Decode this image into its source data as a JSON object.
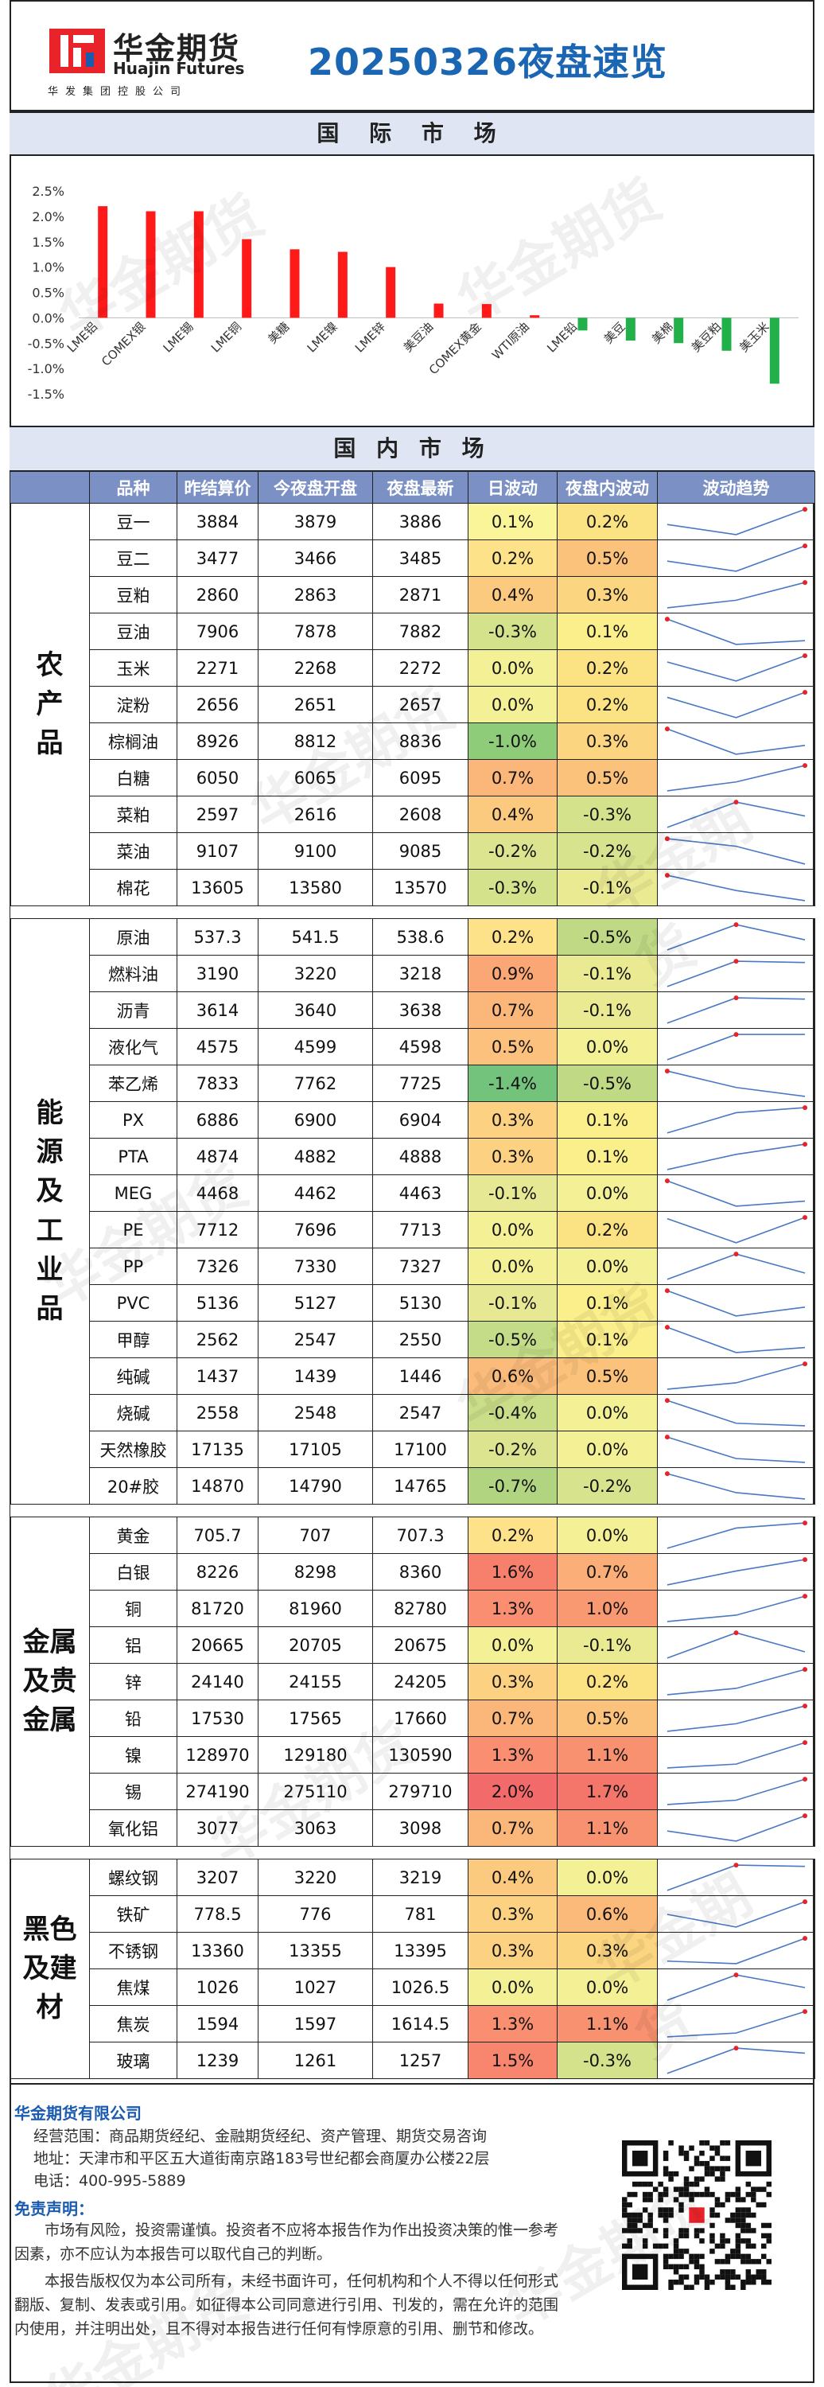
{
  "header": {
    "logo_cn": "华金期货",
    "logo_en": "Huajin Futures",
    "logo_sub": "华发集团控股公司",
    "title": "20250326夜盘速览"
  },
  "sections": {
    "international": "国 际 市 场",
    "domestic": "国 内 市 场"
  },
  "chart_data": {
    "type": "bar",
    "categories": [
      "LME铝",
      "COMEX银",
      "LME锡",
      "LME铜",
      "美糖",
      "LME镍",
      "LME锌",
      "美豆油",
      "COMEX黄金",
      "WTI原油",
      "LME铅",
      "美豆",
      "美棉",
      "美豆粕",
      "美玉米"
    ],
    "values": [
      2.2,
      2.1,
      2.1,
      1.55,
      1.35,
      1.3,
      1.0,
      0.28,
      0.27,
      0.05,
      -0.25,
      -0.45,
      -0.5,
      -0.65,
      -1.3
    ],
    "ylim": [
      -1.5,
      2.5
    ],
    "yticks": [
      "2.5%",
      "2.0%",
      "1.5%",
      "1.0%",
      "0.5%",
      "0.0%",
      "-0.5%",
      "-1.0%",
      "-1.5%"
    ],
    "positive_color": "#ff1a1a",
    "negative_color": "#22b04a",
    "title": "",
    "xlabel": "",
    "ylabel": ""
  },
  "table": {
    "headers": [
      "品种",
      "昨结算价",
      "今夜盘开盘",
      "夜盘最新",
      "日波动",
      "夜盘内波动",
      "波动趋势"
    ],
    "groups": [
      {
        "name": "农产品",
        "lines": [
          "农",
          "产",
          "品"
        ],
        "rows": [
          {
            "name": "豆一",
            "prev": "3884",
            "open": "3879",
            "last": "3886",
            "day": "0.1%",
            "night": "0.2%",
            "dayc": "#fbf59a",
            "nightc": "#fbe283",
            "trend": [
              0.4,
              0.0,
              1.0
            ]
          },
          {
            "name": "豆二",
            "prev": "3477",
            "open": "3466",
            "last": "3485",
            "day": "0.2%",
            "night": "0.5%",
            "dayc": "#fde28a",
            "nightc": "#fbc27b",
            "trend": [
              0.4,
              0.0,
              1.0
            ]
          },
          {
            "name": "豆粕",
            "prev": "2860",
            "open": "2863",
            "last": "2871",
            "day": "0.4%",
            "night": "0.3%",
            "dayc": "#fcca7e",
            "nightc": "#fbd580",
            "trend": [
              0.0,
              0.3,
              1.0
            ]
          },
          {
            "name": "豆油",
            "prev": "7906",
            "open": "7878",
            "last": "7882",
            "day": "-0.3%",
            "night": "0.1%",
            "dayc": "#d3e28b",
            "nightc": "#fbef8c",
            "trend": [
              1.0,
              0.0,
              0.15
            ]
          },
          {
            "name": "玉米",
            "prev": "2271",
            "open": "2268",
            "last": "2272",
            "day": "0.0%",
            "night": "0.2%",
            "dayc": "#f4f096",
            "nightc": "#fbe283",
            "trend": [
              0.75,
              0.0,
              1.0
            ]
          },
          {
            "name": "淀粉",
            "prev": "2656",
            "open": "2651",
            "last": "2657",
            "day": "0.0%",
            "night": "0.2%",
            "dayc": "#f4f096",
            "nightc": "#fbe283",
            "trend": [
              0.8,
              0.0,
              1.0
            ]
          },
          {
            "name": "棕榈油",
            "prev": "8926",
            "open": "8812",
            "last": "8836",
            "day": "-1.0%",
            "night": "0.3%",
            "dayc": "#8fcc79",
            "nightc": "#fbd580",
            "trend": [
              1.0,
              0.0,
              0.35
            ]
          },
          {
            "name": "白糖",
            "prev": "6050",
            "open": "6065",
            "last": "6095",
            "day": "0.7%",
            "night": "0.5%",
            "dayc": "#fbb679",
            "nightc": "#fbc27b",
            "trend": [
              0.0,
              0.35,
              1.0
            ]
          },
          {
            "name": "菜粕",
            "prev": "2597",
            "open": "2616",
            "last": "2608",
            "day": "0.4%",
            "night": "-0.3%",
            "dayc": "#fcca7e",
            "nightc": "#d3e28b",
            "trend": [
              0.0,
              1.0,
              0.45
            ]
          },
          {
            "name": "菜油",
            "prev": "9107",
            "open": "9100",
            "last": "9085",
            "day": "-0.2%",
            "night": "-0.2%",
            "dayc": "#dde48f",
            "nightc": "#d8e38d",
            "trend": [
              1.0,
              0.7,
              0.0
            ]
          },
          {
            "name": "棉花",
            "prev": "13605",
            "open": "13580",
            "last": "13570",
            "day": "-0.3%",
            "night": "-0.1%",
            "dayc": "#d3e28b",
            "nightc": "#eaea93",
            "trend": [
              1.0,
              0.4,
              0.0
            ]
          }
        ]
      },
      {
        "name": "能源及工业品",
        "lines": [
          "能",
          "源",
          "及",
          "工",
          "业",
          "品"
        ],
        "rows": [
          {
            "name": "原油",
            "prev": "537.3",
            "open": "541.5",
            "last": "538.6",
            "day": "0.2%",
            "night": "-0.5%",
            "dayc": "#fde28a",
            "nightc": "#bfd985",
            "trend": [
              0.0,
              1.0,
              0.4
            ]
          },
          {
            "name": "燃料油",
            "prev": "3190",
            "open": "3220",
            "last": "3218",
            "day": "0.9%",
            "night": "-0.1%",
            "dayc": "#fba775",
            "nightc": "#eaea93",
            "trend": [
              0.0,
              1.0,
              0.95
            ]
          },
          {
            "name": "沥青",
            "prev": "3614",
            "open": "3640",
            "last": "3638",
            "day": "0.7%",
            "night": "-0.1%",
            "dayc": "#fbb679",
            "nightc": "#eaea93",
            "trend": [
              0.0,
              1.0,
              0.95
            ]
          },
          {
            "name": "液化气",
            "prev": "4575",
            "open": "4599",
            "last": "4598",
            "day": "0.5%",
            "night": "0.0%",
            "dayc": "#fcc17c",
            "nightc": "#f4f096",
            "trend": [
              0.0,
              1.0,
              1.0
            ]
          },
          {
            "name": "苯乙烯",
            "prev": "7833",
            "open": "7762",
            "last": "7725",
            "day": "-1.4%",
            "night": "-0.5%",
            "dayc": "#74c37c",
            "nightc": "#bfd985",
            "trend": [
              1.0,
              0.35,
              0.0
            ]
          },
          {
            "name": "PX",
            "prev": "6886",
            "open": "6900",
            "last": "6904",
            "day": "0.3%",
            "night": "0.1%",
            "dayc": "#fcd282",
            "nightc": "#fbef8c",
            "trend": [
              0.0,
              0.8,
              1.0
            ]
          },
          {
            "name": "PTA",
            "prev": "4874",
            "open": "4882",
            "last": "4888",
            "day": "0.3%",
            "night": "0.1%",
            "dayc": "#fcd282",
            "nightc": "#fbef8c",
            "trend": [
              0.0,
              0.6,
              1.0
            ]
          },
          {
            "name": "MEG",
            "prev": "4468",
            "open": "4462",
            "last": "4463",
            "day": "-0.1%",
            "night": "0.0%",
            "dayc": "#e7e893",
            "nightc": "#f4f096",
            "trend": [
              1.0,
              0.0,
              0.2
            ]
          },
          {
            "name": "PE",
            "prev": "7712",
            "open": "7696",
            "last": "7713",
            "day": "0.0%",
            "night": "0.2%",
            "dayc": "#f4f096",
            "nightc": "#fbe283",
            "trend": [
              0.95,
              0.0,
              1.0
            ]
          },
          {
            "name": "PP",
            "prev": "7326",
            "open": "7330",
            "last": "7327",
            "day": "0.0%",
            "night": "0.0%",
            "dayc": "#f4f096",
            "nightc": "#f4f096",
            "trend": [
              0.0,
              1.0,
              0.25
            ]
          },
          {
            "name": "PVC",
            "prev": "5136",
            "open": "5127",
            "last": "5130",
            "day": "-0.1%",
            "night": "0.1%",
            "dayc": "#e7e893",
            "nightc": "#fbef8c",
            "trend": [
              1.0,
              0.0,
              0.35
            ]
          },
          {
            "name": "甲醇",
            "prev": "2562",
            "open": "2547",
            "last": "2550",
            "day": "-0.5%",
            "night": "0.1%",
            "dayc": "#c4db87",
            "nightc": "#fbef8c",
            "trend": [
              1.0,
              0.0,
              0.2
            ]
          },
          {
            "name": "纯碱",
            "prev": "1437",
            "open": "1439",
            "last": "1446",
            "day": "0.6%",
            "night": "0.5%",
            "dayc": "#fbbb7a",
            "nightc": "#fbc27b",
            "trend": [
              0.0,
              0.25,
              1.0
            ]
          },
          {
            "name": "烧碱",
            "prev": "2558",
            "open": "2548",
            "last": "2547",
            "day": "-0.4%",
            "night": "0.0%",
            "dayc": "#cadd89",
            "nightc": "#f4f096",
            "trend": [
              1.0,
              0.1,
              0.0
            ]
          },
          {
            "name": "天然橡胶",
            "prev": "17135",
            "open": "17105",
            "last": "17100",
            "day": "-0.2%",
            "night": "0.0%",
            "dayc": "#dde48f",
            "nightc": "#f4f096",
            "trend": [
              1.0,
              0.15,
              0.0
            ]
          },
          {
            "name": "20#胶",
            "prev": "14870",
            "open": "14790",
            "last": "14765",
            "day": "-0.7%",
            "night": "-0.2%",
            "dayc": "#b1d481",
            "nightc": "#d8e38d",
            "trend": [
              1.0,
              0.25,
              0.0
            ]
          }
        ]
      },
      {
        "name": "金属及贵金属",
        "lines": [
          "金属",
          "及贵",
          "金属"
        ],
        "rows": [
          {
            "name": "黄金",
            "prev": "705.7",
            "open": "707",
            "last": "707.3",
            "day": "0.2%",
            "night": "0.0%",
            "dayc": "#fde28a",
            "nightc": "#f4f096",
            "trend": [
              0.0,
              0.8,
              1.0
            ]
          },
          {
            "name": "白银",
            "prev": "8226",
            "open": "8298",
            "last": "8360",
            "day": "1.6%",
            "night": "0.7%",
            "dayc": "#f7806c",
            "nightc": "#fbae77",
            "trend": [
              0.0,
              0.55,
              1.0
            ]
          },
          {
            "name": "铜",
            "prev": "81720",
            "open": "81960",
            "last": "82780",
            "day": "1.3%",
            "night": "1.0%",
            "dayc": "#f98f70",
            "nightc": "#f99972",
            "trend": [
              0.0,
              0.25,
              1.0
            ]
          },
          {
            "name": "铝",
            "prev": "20665",
            "open": "20705",
            "last": "20675",
            "day": "0.0%",
            "night": "-0.1%",
            "dayc": "#f4f096",
            "nightc": "#eaea93",
            "trend": [
              0.0,
              1.0,
              0.25
            ]
          },
          {
            "name": "锌",
            "prev": "24140",
            "open": "24155",
            "last": "24205",
            "day": "0.3%",
            "night": "0.2%",
            "dayc": "#fcd282",
            "nightc": "#fbe283",
            "trend": [
              0.0,
              0.25,
              1.0
            ]
          },
          {
            "name": "铅",
            "prev": "17530",
            "open": "17565",
            "last": "17660",
            "day": "0.7%",
            "night": "0.5%",
            "dayc": "#fbb679",
            "nightc": "#fbc27b",
            "trend": [
              0.0,
              0.3,
              1.0
            ]
          },
          {
            "name": "镍",
            "prev": "128970",
            "open": "129180",
            "last": "130590",
            "day": "1.3%",
            "night": "1.1%",
            "dayc": "#f98f70",
            "nightc": "#f8916f",
            "trend": [
              0.0,
              0.15,
              1.0
            ]
          },
          {
            "name": "锡",
            "prev": "274190",
            "open": "275110",
            "last": "279710",
            "day": "2.0%",
            "night": "1.7%",
            "dayc": "#f26a69",
            "nightc": "#f4756a",
            "trend": [
              0.0,
              0.17,
              1.0
            ]
          },
          {
            "name": "氧化铝",
            "prev": "3077",
            "open": "3063",
            "last": "3098",
            "day": "0.7%",
            "night": "1.1%",
            "dayc": "#fbb679",
            "nightc": "#f8916f",
            "trend": [
              0.4,
              0.0,
              1.0
            ]
          }
        ]
      },
      {
        "name": "黑色及建材",
        "lines": [
          "黑色",
          "及建",
          "材"
        ],
        "rows": [
          {
            "name": "螺纹钢",
            "prev": "3207",
            "open": "3220",
            "last": "3219",
            "day": "0.4%",
            "night": "0.0%",
            "dayc": "#fcca7e",
            "nightc": "#f4f096",
            "trend": [
              0.0,
              1.0,
              0.95
            ]
          },
          {
            "name": "铁矿",
            "prev": "778.5",
            "open": "776",
            "last": "781",
            "day": "0.3%",
            "night": "0.6%",
            "dayc": "#fcd282",
            "nightc": "#fbba7a",
            "trend": [
              0.5,
              0.0,
              1.0
            ]
          },
          {
            "name": "不锈钢",
            "prev": "13360",
            "open": "13355",
            "last": "13395",
            "day": "0.3%",
            "night": "0.3%",
            "dayc": "#fcd282",
            "nightc": "#fbd580",
            "trend": [
              0.1,
              0.0,
              1.0
            ]
          },
          {
            "name": "焦煤",
            "prev": "1026",
            "open": "1027",
            "last": "1026.5",
            "day": "0.0%",
            "night": "0.0%",
            "dayc": "#f4f096",
            "nightc": "#f4f096",
            "trend": [
              0.0,
              1.0,
              0.5
            ]
          },
          {
            "name": "焦炭",
            "prev": "1594",
            "open": "1597",
            "last": "1614.5",
            "day": "1.3%",
            "night": "1.1%",
            "dayc": "#f98f70",
            "nightc": "#f8916f",
            "trend": [
              0.0,
              0.15,
              1.0
            ]
          },
          {
            "name": "玻璃",
            "prev": "1239",
            "open": "1261",
            "last": "1257",
            "day": "1.5%",
            "night": "-0.3%",
            "dayc": "#f8866e",
            "nightc": "#d3e28b",
            "trend": [
              0.0,
              1.0,
              0.8
            ]
          }
        ]
      }
    ]
  },
  "footer": {
    "company": "华金期货有限公司",
    "scope": "经营范围：商品期货经纪、金融期货经纪、资产管理、期货交易咨询",
    "address": "地址：天津市和平区五大道街南京路183号世纪都会商厦办公楼22层",
    "phone": "电话：400-995-5889",
    "disclaimer_title": "免责声明：",
    "para1": "市场有风险，投资需谨慎。投资者不应将本报告作为作出投资决策的惟一参考因素，亦不应认为本报告可以取代自己的判断。",
    "para2": "本报告版权仅为本公司所有，未经书面许可，任何机构和个人不得以任何形式翻版、复制、发表或引用。如征得本公司同意进行引用、刊发的，需在允许的范围内使用，并注明出处，且不得对本报告进行任何有悖原意的引用、删节和修改。"
  },
  "watermark": "华金期货"
}
